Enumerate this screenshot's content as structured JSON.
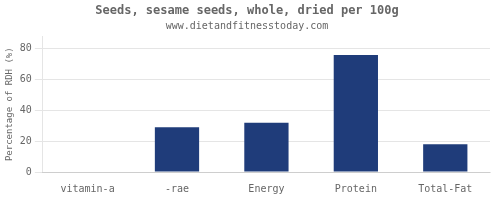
{
  "chart_data": {
    "type": "bar",
    "title": "Seeds, sesame seeds, whole, dried per 100g",
    "subtitle": "www.dietandfitnesstoday.com",
    "categories": [
      "vitamin-a",
      "-rae",
      "Energy",
      "Protein",
      "Total-Fat"
    ],
    "values": [
      0,
      29,
      32,
      76,
      18
    ],
    "color": "#1f3c7a",
    "ylabel": "Percentage of RDH (%)",
    "ylim": [
      0,
      88
    ],
    "yticks": [
      0,
      20,
      40,
      60,
      80
    ],
    "grid": true
  }
}
